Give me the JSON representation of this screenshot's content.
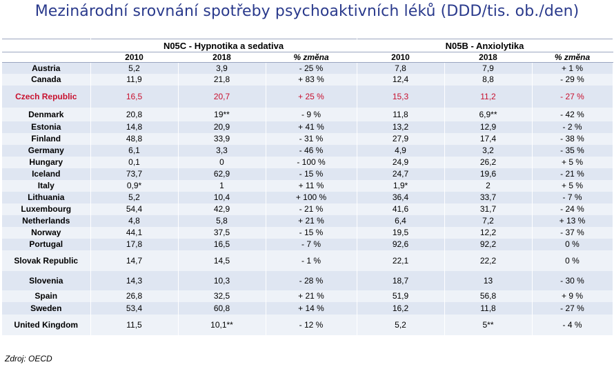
{
  "title": "Mezinárodní srovnání spotřeby psychoaktivních léků (DDD/tis. ob./den)",
  "groups": [
    {
      "label": "N05C - Hypnotika a sedativa"
    },
    {
      "label": "N05B - Anxiolytika"
    }
  ],
  "subheaders": [
    "2010",
    "2018",
    "% změna",
    "2010",
    "2018",
    "% změna"
  ],
  "rows": [
    {
      "country": "Austria",
      "v": [
        "5,2",
        "3,9",
        "- 25 %",
        "7,8",
        "7,9",
        "+ 1 %"
      ]
    },
    {
      "country": "Canada",
      "v": [
        "11,9",
        "21,8",
        "+ 83 %",
        "12,4",
        "8,8",
        "- 29 %"
      ]
    },
    {
      "country": "Czech Republic",
      "highlight": true,
      "v": [
        "16,5",
        "20,7",
        "+ 25 %",
        "15,3",
        "11,2",
        "- 27 %"
      ]
    },
    {
      "country": "Denmark",
      "v": [
        "20,8",
        "19**",
        "- 9 %",
        "11,8",
        "6,9**",
        "- 42 %"
      ]
    },
    {
      "country": "Estonia",
      "v": [
        "14,8",
        "20,9",
        "+ 41 %",
        "13,2",
        "12,9",
        "- 2 %"
      ]
    },
    {
      "country": "Finland",
      "v": [
        "48,8",
        "33,9",
        "- 31 %",
        "27,9",
        "17,4",
        "- 38 %"
      ]
    },
    {
      "country": "Germany",
      "v": [
        "6,1",
        "3,3",
        "- 46 %",
        "4,9",
        "3,2",
        "- 35 %"
      ]
    },
    {
      "country": "Hungary",
      "v": [
        "0,1",
        "0",
        "- 100 %",
        "24,9",
        "26,2",
        "+ 5 %"
      ]
    },
    {
      "country": "Iceland",
      "v": [
        "73,7",
        "62,9",
        "- 15 %",
        "24,7",
        "19,6",
        "- 21 %"
      ]
    },
    {
      "country": "Italy",
      "v": [
        "0,9*",
        "1",
        "+ 11 %",
        "1,9*",
        "2",
        "+ 5 %"
      ]
    },
    {
      "country": "Lithuania",
      "v": [
        "5,2",
        "10,4",
        "+ 100 %",
        "36,4",
        "33,7",
        "- 7 %"
      ]
    },
    {
      "country": "Luxembourg",
      "v": [
        "54,4",
        "42,9",
        "- 21 %",
        "41,6",
        "31,7",
        "- 24 %"
      ]
    },
    {
      "country": "Netherlands",
      "v": [
        "4,8",
        "5,8",
        "+ 21 %",
        "6,4",
        "7,2",
        "+ 13 %"
      ]
    },
    {
      "country": "Norway",
      "v": [
        "44,1",
        "37,5",
        "- 15 %",
        "19,5",
        "12,2",
        "- 37 %"
      ]
    },
    {
      "country": "Portugal",
      "v": [
        "17,8",
        "16,5",
        "- 7 %",
        "92,6",
        "92,2",
        "0 %"
      ]
    },
    {
      "country": "Slovak Republic",
      "v": [
        "14,7",
        "14,5",
        "- 1 %",
        "22,1",
        "22,2",
        "0 %"
      ]
    },
    {
      "country": "Slovenia",
      "v": [
        "14,3",
        "10,3",
        "- 28 %",
        "18,7",
        "13",
        "- 30 %"
      ]
    },
    {
      "country": "Spain",
      "v": [
        "26,8",
        "32,5",
        "+ 21 %",
        "51,9",
        "56,8",
        "+ 9 %"
      ]
    },
    {
      "country": "Sweden",
      "v": [
        "53,4",
        "60,8",
        "+ 14 %",
        "16,2",
        "11,8",
        "- 27 %"
      ]
    },
    {
      "country": "United Kingdom",
      "v": [
        "11,5",
        "10,1**",
        "- 12 %",
        "5,2",
        "5**",
        "- 4 %"
      ]
    }
  ],
  "source": "Zdroj: OECD",
  "colors": {
    "title": "#2a3a8c",
    "highlight": "#c8102e",
    "row_dark": "#dfe6f2",
    "row_light": "#eef2f8"
  }
}
